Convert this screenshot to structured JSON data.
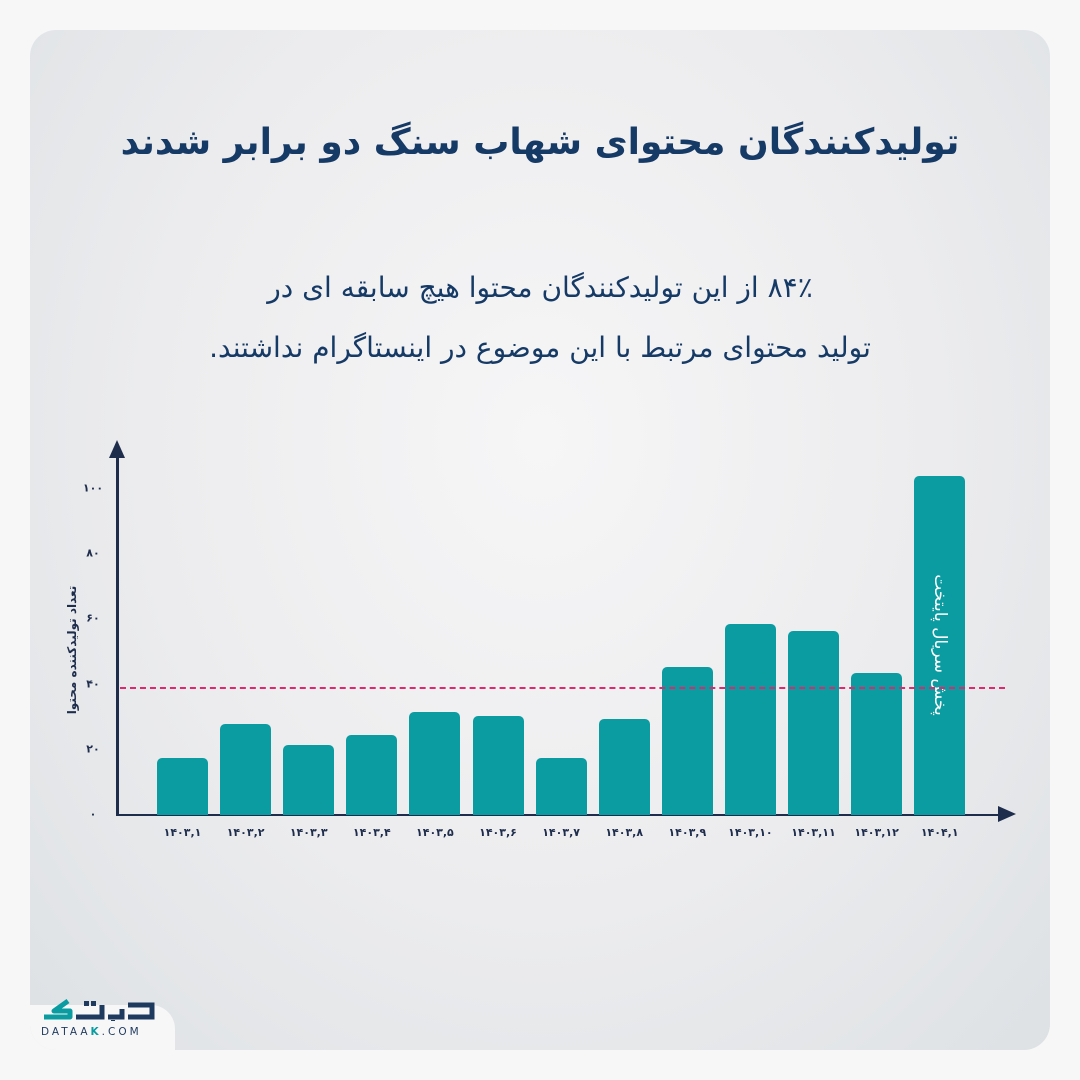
{
  "header": {
    "title": "تولیدکنندگان محتوای شهاب سنگ دو برابر شدند",
    "subtitle_line1": "۸۴٪ از این تولیدکنندگان محتوا هیچ سابقه ای در",
    "subtitle_line2": "تولید محتوای مرتبط با این موضوع در اینستاگرام نداشتند."
  },
  "chart": {
    "y_axis_label": "تعداد تولیدکننده محتوا",
    "y_ticks": [
      "۰",
      "۲۰",
      "۴۰",
      "۶۰",
      "۸۰",
      "۱۰۰"
    ],
    "x_ticks": [
      "۱۴۰۳,۱",
      "۱۴۰۳,۲",
      "۱۴۰۳,۳",
      "۱۴۰۳,۴",
      "۱۴۰۳,۵",
      "۱۴۰۳,۶",
      "۱۴۰۳,۷",
      "۱۴۰۳,۸",
      "۱۴۰۳,۹",
      "۱۴۰۳,۱۰",
      "۱۴۰۳,۱۱",
      "۱۴۰۳,۱۲",
      "۱۴۰۴,۱"
    ],
    "annotation": "پخش سریال پایتخت"
  },
  "colors": {
    "title": "#163a66",
    "bar": "#0a9ca1",
    "average_line": "#e0286e",
    "axis": "#1f2d4d"
  },
  "chart_data": {
    "type": "bar",
    "title": "تولیدکنندگان محتوای شهاب سنگ دو برابر شدند",
    "subtitle": "۸۴٪ از این تولیدکنندگان محتوا هیچ سابقه ای در تولید محتوای مرتبط با این موضوع در اینستاگرام نداشتند.",
    "xlabel": "",
    "ylabel": "تعداد تولیدکننده محتوا",
    "categories": [
      "1403.1",
      "1403.2",
      "1403.3",
      "1403.4",
      "1403.5",
      "1403.6",
      "1403.7",
      "1403.8",
      "1403.9",
      "1403.10",
      "1403.11",
      "1403.12",
      "1404.1"
    ],
    "values": [
      17.5,
      28,
      21.5,
      24.5,
      31.5,
      30.5,
      17.5,
      29.5,
      45.5,
      58.5,
      56.5,
      43.5,
      104
    ],
    "ylim": [
      0,
      110
    ],
    "yticks": [
      0,
      20,
      40,
      60,
      80,
      100
    ],
    "reference_lines": [
      {
        "type": "horizontal",
        "value": 39,
        "style": "dashed",
        "label": "average"
      }
    ],
    "annotations": [
      {
        "category": "1404.1",
        "text": "پخش سریال پایتخت"
      }
    ],
    "grid": false,
    "legend": null
  },
  "brand": {
    "logo_fa": "دیتاک",
    "logo_en_prefix": "DATAA",
    "logo_en_accent": "K",
    "logo_en_suffix": ".COM"
  }
}
